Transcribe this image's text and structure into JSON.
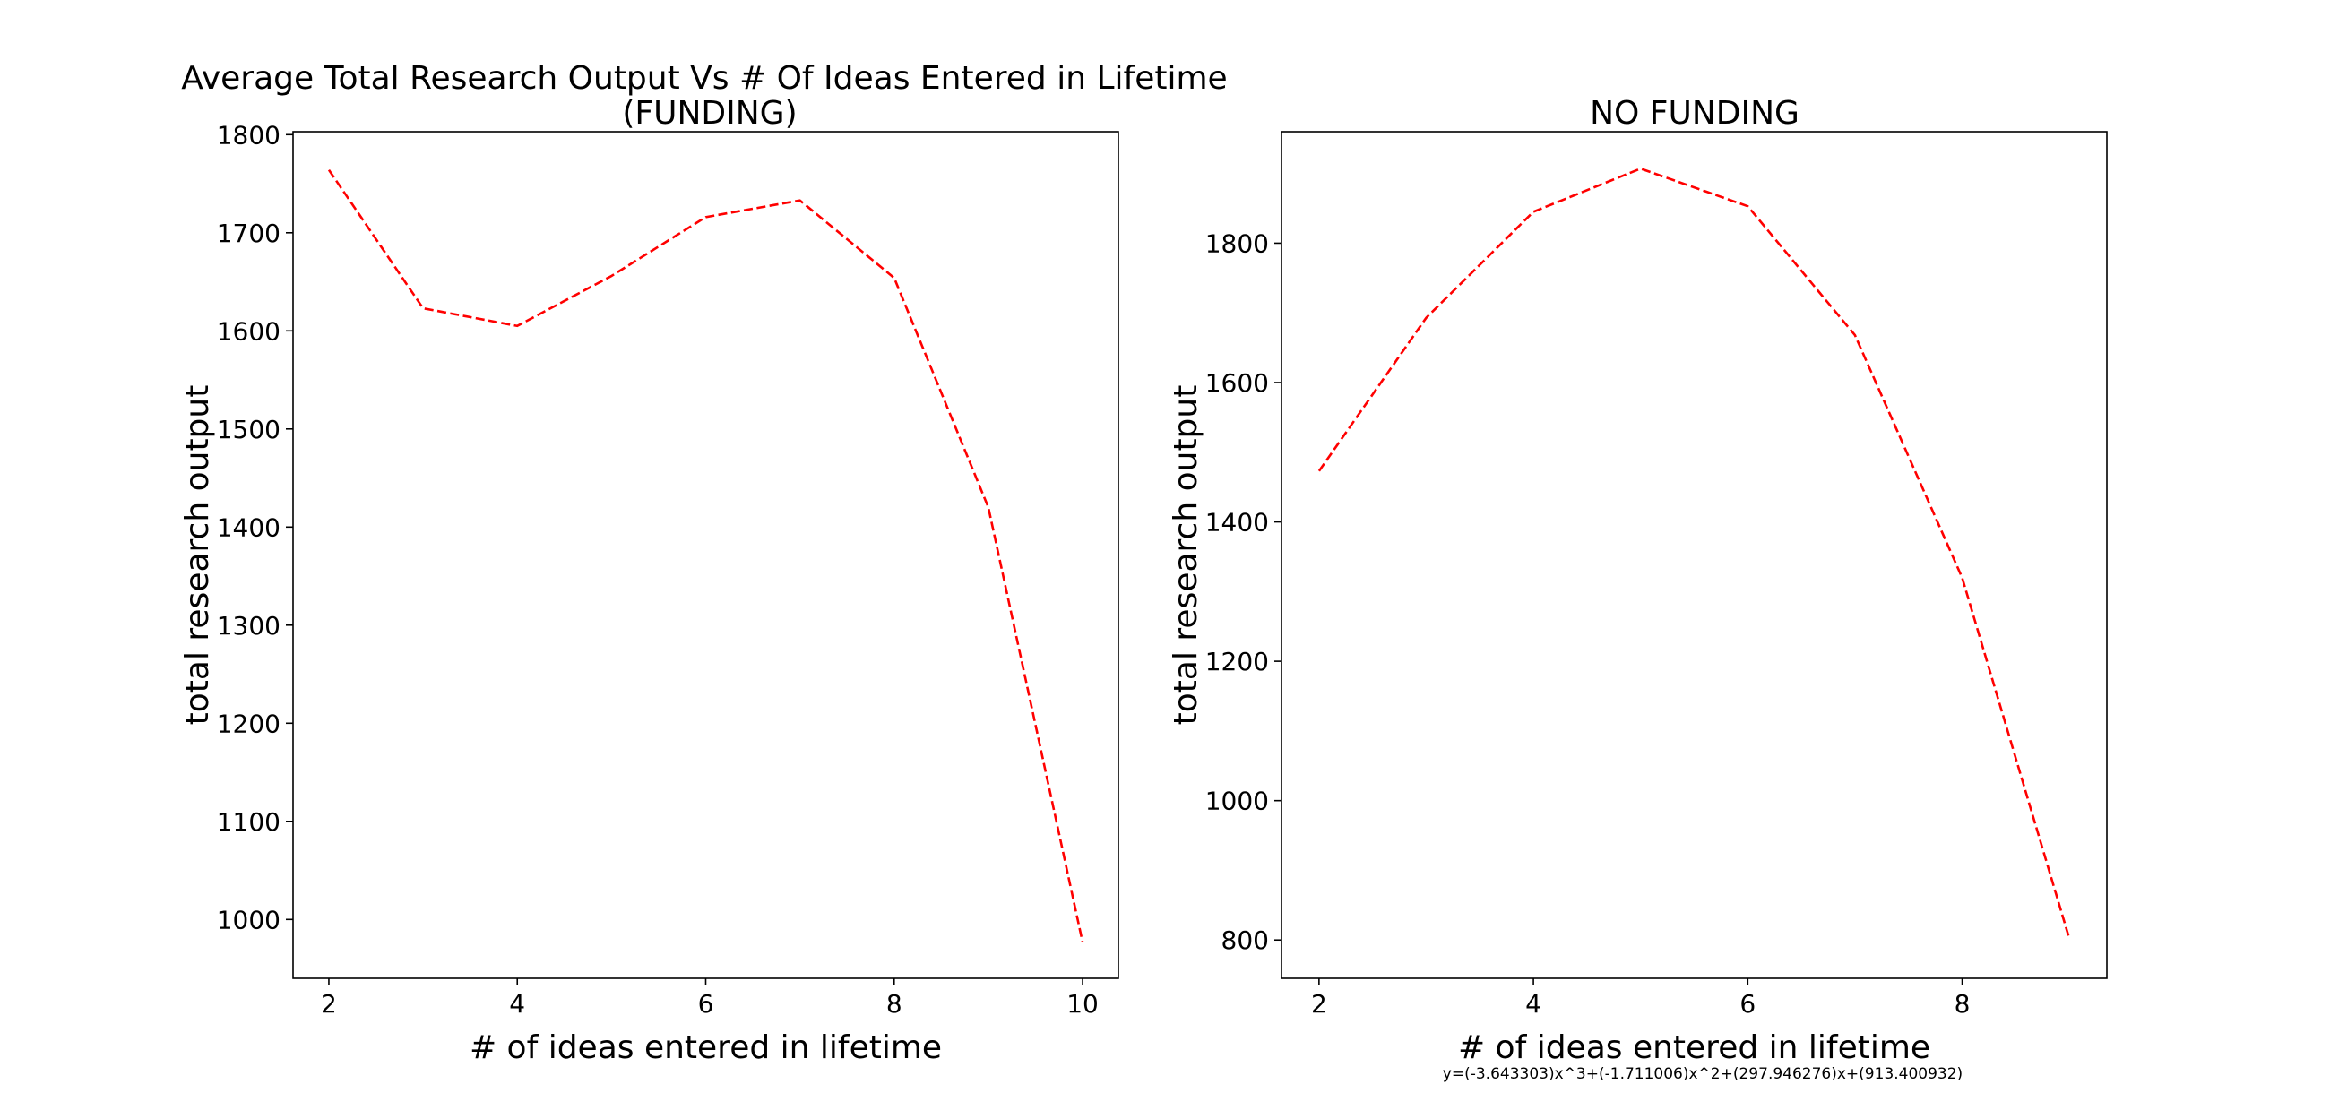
{
  "chart_data": [
    {
      "type": "line",
      "title": "Average Total Research Output Vs # Of Ideas Entered in Lifetime\n(FUNDING)",
      "title_lines": [
        "Average Total Research Output Vs # Of Ideas Entered in Lifetime",
        "(FUNDING)"
      ],
      "xlabel": "# of ideas entered in lifetime",
      "ylabel": "total research output",
      "xlim": [
        1.62,
        10.38
      ],
      "ylim": [
        940,
        1803
      ],
      "xticks": [
        2,
        4,
        6,
        8,
        10
      ],
      "yticks": [
        1000,
        1100,
        1200,
        1300,
        1400,
        1500,
        1600,
        1700,
        1800
      ],
      "grid": false,
      "legend": "none",
      "series": [
        {
          "color": "#ff0000",
          "linestyle": "dashed",
          "x": [
            2,
            3,
            4,
            5,
            6,
            7,
            8,
            9,
            10
          ],
          "y": [
            1764,
            1623,
            1605,
            1656,
            1716,
            1733,
            1654,
            1420,
            977
          ]
        }
      ]
    },
    {
      "type": "line",
      "title": "NO FUNDING",
      "title_lines": [
        "NO FUNDING"
      ],
      "xlabel": "# of ideas entered in lifetime",
      "ylabel": "total research output",
      "xlim": [
        1.65,
        9.35
      ],
      "ylim": [
        745,
        1960
      ],
      "xticks": [
        2,
        4,
        6,
        8
      ],
      "yticks": [
        800,
        1000,
        1200,
        1400,
        1600,
        1800
      ],
      "grid": false,
      "legend": "none",
      "annotation": "y=(-3.643303)x^3+(-1.711006)x^2+(297.946276)x+(913.400932)",
      "series": [
        {
          "color": "#ff0000",
          "linestyle": "dashed",
          "x": [
            2,
            3,
            4,
            5,
            6,
            7,
            8,
            9
          ],
          "y": [
            1473,
            1693,
            1845,
            1907,
            1853,
            1668,
            1320,
            802
          ]
        }
      ]
    }
  ]
}
